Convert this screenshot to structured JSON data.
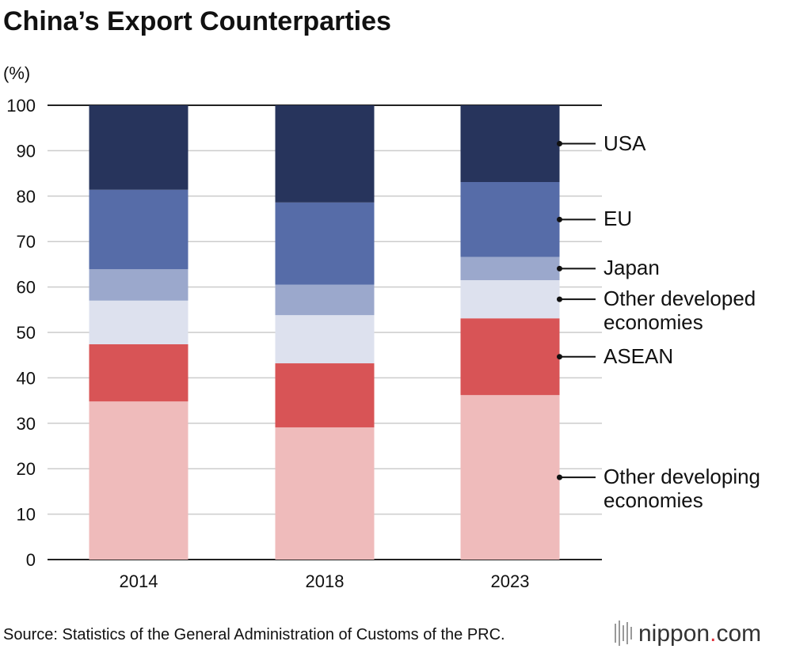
{
  "chart_data": {
    "type": "stacked-bar",
    "title": "China’s Export Counterparties",
    "y_unit": "(%)",
    "categories": [
      "2014",
      "2018",
      "2023"
    ],
    "series": [
      {
        "name": "Other developing economies",
        "color": "#efbbbb",
        "values": [
          34.8,
          29.1,
          36.2
        ]
      },
      {
        "name": "ASEAN",
        "color": "#d85456",
        "values": [
          12.6,
          14.1,
          16.9
        ]
      },
      {
        "name": "Other developed economies",
        "color": "#dde1ee",
        "values": [
          9.6,
          10.6,
          8.4
        ]
      },
      {
        "name": "Japan",
        "color": "#9ba8cc",
        "values": [
          6.9,
          6.7,
          5.1
        ]
      },
      {
        "name": "EU",
        "color": "#566ca8",
        "values": [
          17.5,
          18.1,
          16.5
        ]
      },
      {
        "name": "USA",
        "color": "#27345c",
        "values": [
          18.6,
          21.4,
          16.9
        ]
      }
    ],
    "ylim": [
      0,
      100
    ],
    "yticks": [
      0,
      10,
      20,
      30,
      40,
      50,
      60,
      70,
      80,
      90,
      100
    ],
    "grid": true,
    "source": "Source: Statistics of the General Administration of Customs of the PRC.",
    "logo": {
      "name": "nippon",
      "dot": ".",
      "tld": "com"
    }
  }
}
